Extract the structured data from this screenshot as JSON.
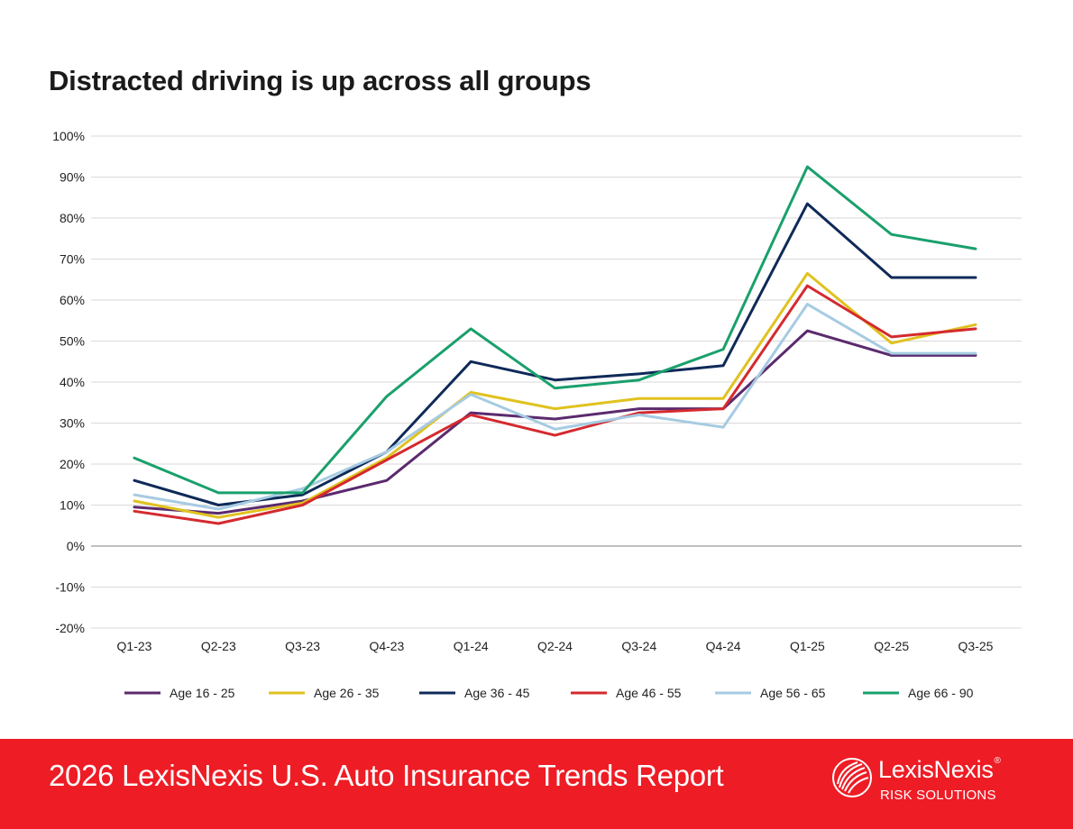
{
  "page": {
    "title": "Distracted driving is up across all groups"
  },
  "footer": {
    "report_title": "2026 LexisNexis U.S. Auto Insurance Trends Report",
    "brand_name": "LexisNexis",
    "brand_registered": "®",
    "brand_sub": "RISK SOLUTIONS",
    "background_color": "#ee1c25",
    "logo_icon": "lexisnexis-knowledge-burst-icon"
  },
  "chart_data": {
    "type": "line",
    "title": "Distracted driving is up across all groups",
    "xlabel": "",
    "ylabel": "",
    "categories": [
      "Q1-23",
      "Q2-23",
      "Q3-23",
      "Q4-23",
      "Q1-24",
      "Q2-24",
      "Q3-24",
      "Q4-24",
      "Q1-25",
      "Q2-25",
      "Q3-25"
    ],
    "ylim": [
      -20,
      100
    ],
    "yticks": [
      100,
      90,
      80,
      70,
      60,
      50,
      40,
      30,
      20,
      10,
      0,
      -10,
      -20
    ],
    "ytick_labels": [
      "100%",
      "90%",
      "80%",
      "70%",
      "60%",
      "50%",
      "40%",
      "30%",
      "20%",
      "10%",
      "0%",
      "-10%",
      "-20%"
    ],
    "grid": true,
    "legend_position": "bottom",
    "series": [
      {
        "name": "Age 16 - 25",
        "color": "#5b2a6e",
        "values": [
          9.5,
          8,
          11,
          16,
          32.5,
          31,
          33.5,
          33.5,
          52.5,
          46.5,
          46.5
        ]
      },
      {
        "name": "Age 26 - 35",
        "color": "#e0c21f",
        "values": [
          11,
          7,
          10.5,
          21.5,
          37.5,
          33.5,
          36,
          36,
          66.5,
          49.5,
          54
        ]
      },
      {
        "name": "Age 36 - 45",
        "color": "#0f2a58",
        "values": [
          16,
          10,
          12.5,
          23,
          45,
          40.5,
          42,
          44,
          83.5,
          65.5,
          65.5
        ]
      },
      {
        "name": "Age 46 - 55",
        "color": "#d42a2e",
        "values": [
          8.5,
          5.5,
          10,
          21,
          32,
          27,
          32.5,
          33.5,
          63.5,
          51,
          53
        ]
      },
      {
        "name": "Age 56 - 65",
        "color": "#a6cbe2",
        "values": [
          12.5,
          9,
          14,
          23,
          37,
          28.5,
          32,
          29,
          59,
          47,
          47
        ]
      },
      {
        "name": "Age 66 - 90",
        "color": "#1aa06c",
        "values": [
          21.5,
          13,
          13,
          36.5,
          53,
          38.5,
          40.5,
          48,
          92.5,
          76,
          72.5
        ]
      }
    ]
  }
}
